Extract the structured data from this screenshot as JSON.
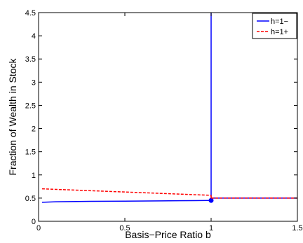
{
  "chart_data": {
    "type": "line",
    "title": "",
    "xlabel": "Basis−Price Ratio b",
    "ylabel": "Fraction of Wealth in Stock",
    "xlim": [
      0,
      1.5
    ],
    "ylim": [
      0,
      4.5
    ],
    "xticks": [
      0,
      0.5,
      1,
      1.5
    ],
    "xtick_labels": [
      "0",
      "0.5",
      "1",
      "1.5"
    ],
    "yticks": [
      0,
      0.5,
      1,
      1.5,
      2,
      2.5,
      3,
      3.5,
      4,
      4.5
    ],
    "ytick_labels": [
      "0",
      "0.5",
      "1",
      "1.5",
      "2",
      "2.5",
      "3",
      "3.5",
      "4",
      "4.5"
    ],
    "grid": false,
    "legend_position": "top-right",
    "series": [
      {
        "name": "h=1−",
        "color": "#0000ff",
        "style": "solid",
        "segments": [
          {
            "x": [
              0.02,
              0.1,
              0.3,
              0.5,
              0.7,
              0.9,
              1.0
            ],
            "y": [
              0.41,
              0.42,
              0.43,
              0.435,
              0.44,
              0.445,
              0.45
            ]
          },
          {
            "x": [
              1.0,
              1.0
            ],
            "y": [
              0.45,
              4.5
            ]
          },
          {
            "x": [
              1.0,
              1.5
            ],
            "y": [
              0.5,
              0.5
            ]
          }
        ],
        "marker": {
          "x": 1.0,
          "y": 0.45
        }
      },
      {
        "name": "h=1+",
        "color": "#ff0000",
        "style": "dashed",
        "segments": [
          {
            "x": [
              0.02,
              1.0
            ],
            "y": [
              0.7,
              0.56
            ]
          },
          {
            "x": [
              1.0,
              1.0
            ],
            "y": [
              0.56,
              0.5
            ]
          },
          {
            "x": [
              1.0,
              1.5
            ],
            "y": [
              0.5,
              0.5
            ]
          }
        ]
      }
    ]
  }
}
